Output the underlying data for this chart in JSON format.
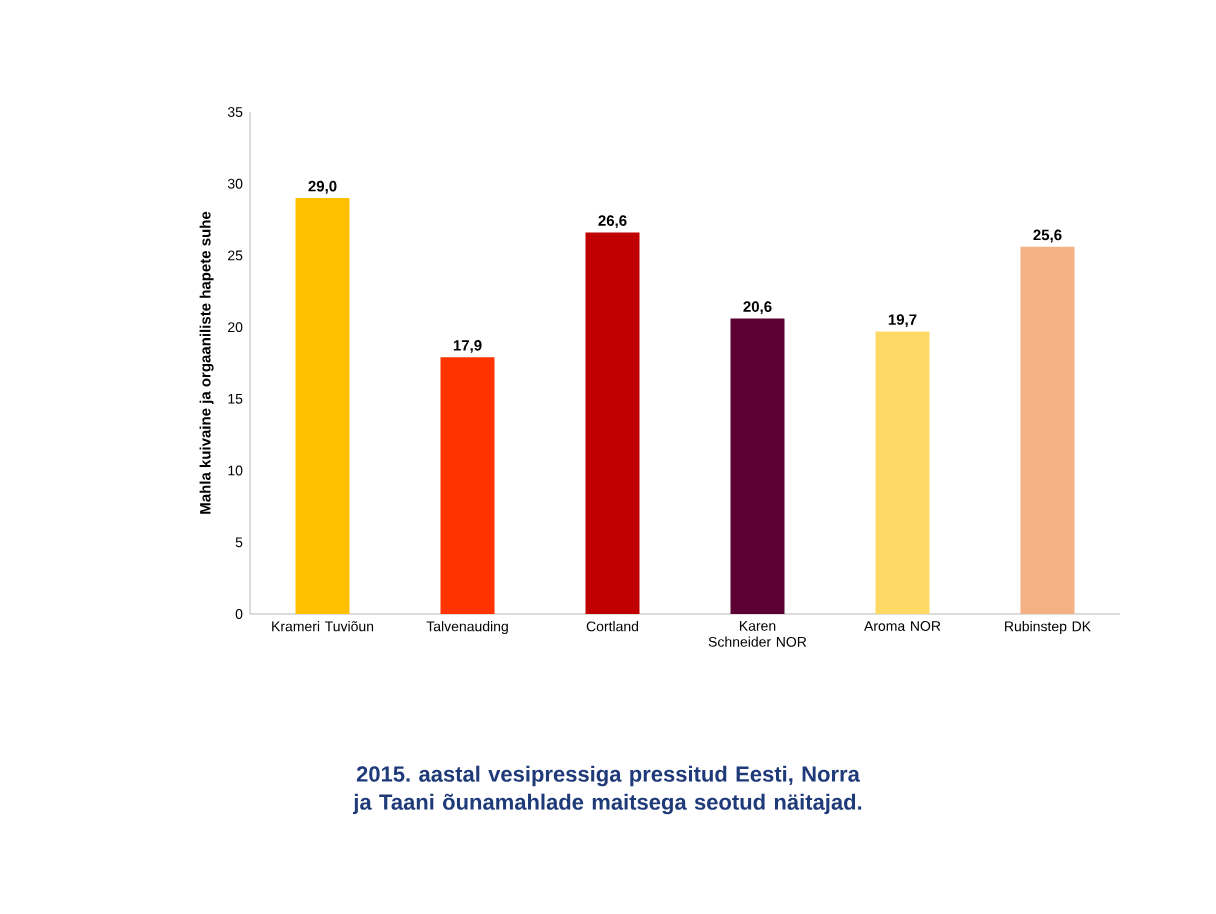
{
  "chart_data": {
    "type": "bar",
    "title": "2015. aastal vesipressiga pressitud Eesti, Norra ja Taani õunamahlade maitsega seotud näitajad.",
    "ylabel": "Mahla kuivaine ja orgaaniliste hapete suhe",
    "categories": [
      "Krameri Tuviõun",
      "Talvenauding",
      "Cortland",
      "Karen Schneider NOR",
      "Aroma NOR",
      "Rubinstep DK"
    ],
    "values": [
      29.0,
      17.9,
      26.6,
      20.6,
      19.7,
      25.6
    ],
    "value_labels": [
      "29,0",
      "17,9",
      "26,6",
      "20,6",
      "19,7",
      "25,6"
    ],
    "colors": [
      "#ffc000",
      "#ff3300",
      "#c00000",
      "#5c0033",
      "#ffd966",
      "#f4b183"
    ],
    "ylim": [
      0,
      35
    ],
    "yticks": [
      0,
      5,
      10,
      15,
      20,
      25,
      30,
      35
    ]
  }
}
